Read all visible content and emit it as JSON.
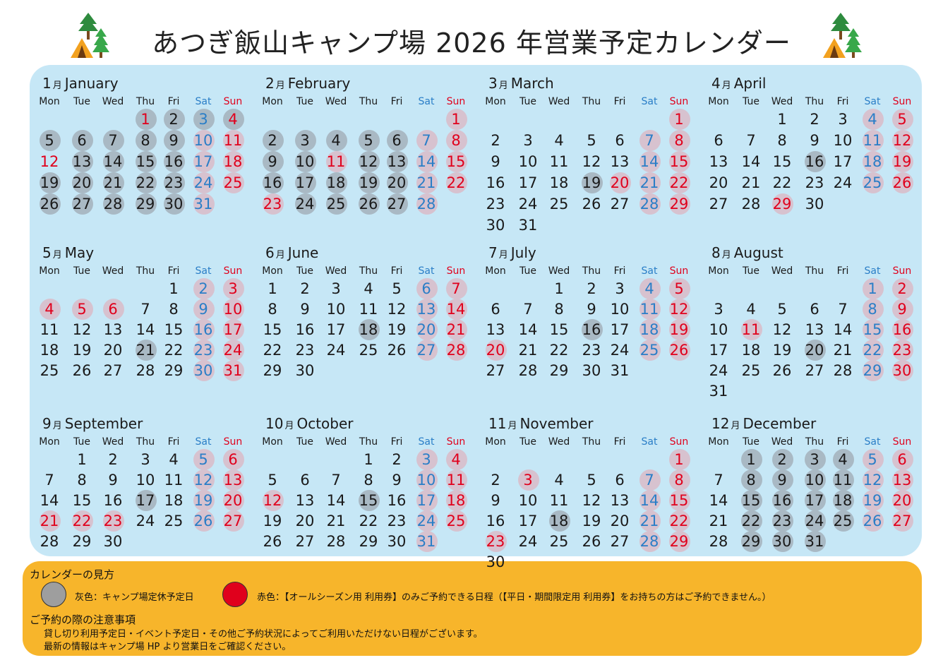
{
  "title": "あつぎ飯山キャンプ場 2026 年営業予定カレンダー",
  "month_suffix": "月",
  "weekdays": [
    "Mon",
    "Tue",
    "Wed",
    "Thu",
    "Fri",
    "Sat",
    "Sun"
  ],
  "colors": {
    "calendar_bg": "#c6e7f6",
    "legend_bg": "#f7b52b",
    "closed": "#a9b9c4",
    "season_only": "#d7c2cf",
    "sat": "#2a7ec7",
    "sun_holiday": "#e0001c"
  },
  "months": [
    {
      "num": "1",
      "name": "January",
      "first": 3,
      "days": 31,
      "holidays": [
        1,
        12
      ],
      "gray": [
        1,
        2,
        3,
        4,
        5,
        6,
        7,
        8,
        9,
        13,
        14,
        15,
        16,
        19,
        20,
        21,
        22,
        23,
        26,
        27,
        28,
        29,
        30
      ],
      "pink": [
        10,
        11,
        17,
        18,
        24,
        25,
        31
      ]
    },
    {
      "num": "2",
      "name": "February",
      "first": 6,
      "days": 28,
      "holidays": [
        11,
        23
      ],
      "gray": [
        2,
        3,
        4,
        5,
        6,
        9,
        10,
        12,
        13,
        16,
        17,
        18,
        19,
        20,
        24,
        25,
        26,
        27
      ],
      "pink": [
        1,
        7,
        8,
        11,
        14,
        15,
        21,
        22,
        23,
        28
      ]
    },
    {
      "num": "3",
      "name": "March",
      "first": 6,
      "days": 31,
      "holidays": [
        20
      ],
      "gray": [
        19
      ],
      "pink": [
        1,
        7,
        8,
        14,
        15,
        20,
        21,
        22,
        28,
        29
      ]
    },
    {
      "num": "4",
      "name": "April",
      "first": 2,
      "days": 30,
      "holidays": [
        29
      ],
      "gray": [
        16
      ],
      "pink": [
        4,
        5,
        11,
        12,
        18,
        19,
        25,
        26,
        29
      ]
    },
    {
      "num": "5",
      "name": "May",
      "first": 4,
      "days": 31,
      "holidays": [
        4,
        5,
        6
      ],
      "gray": [
        21
      ],
      "pink": [
        2,
        3,
        4,
        5,
        6,
        9,
        10,
        16,
        17,
        23,
        24,
        30,
        31
      ]
    },
    {
      "num": "6",
      "name": "June",
      "first": 0,
      "days": 30,
      "holidays": [],
      "gray": [
        18
      ],
      "pink": [
        6,
        7,
        13,
        14,
        20,
        21,
        27,
        28
      ]
    },
    {
      "num": "7",
      "name": "July",
      "first": 2,
      "days": 31,
      "holidays": [
        20
      ],
      "gray": [
        16
      ],
      "pink": [
        4,
        5,
        11,
        12,
        18,
        19,
        20,
        25,
        26
      ]
    },
    {
      "num": "8",
      "name": "August",
      "first": 5,
      "days": 31,
      "holidays": [
        11
      ],
      "gray": [
        20
      ],
      "pink": [
        1,
        2,
        8,
        9,
        11,
        15,
        16,
        22,
        23,
        29,
        30
      ]
    },
    {
      "num": "9",
      "name": "September",
      "first": 1,
      "days": 30,
      "holidays": [
        21,
        22,
        23
      ],
      "gray": [
        17
      ],
      "pink": [
        5,
        6,
        12,
        13,
        19,
        20,
        21,
        22,
        23,
        26,
        27
      ]
    },
    {
      "num": "10",
      "name": "October",
      "first": 3,
      "days": 31,
      "holidays": [
        12
      ],
      "gray": [
        15
      ],
      "pink": [
        3,
        4,
        10,
        11,
        12,
        17,
        18,
        24,
        25,
        31
      ]
    },
    {
      "num": "11",
      "name": "November",
      "first": 6,
      "days": 30,
      "holidays": [
        3,
        23
      ],
      "gray": [
        18
      ],
      "pink": [
        1,
        3,
        7,
        8,
        14,
        15,
        21,
        22,
        23,
        28,
        29
      ]
    },
    {
      "num": "12",
      "name": "December",
      "first": 1,
      "days": 31,
      "holidays": [],
      "gray": [
        1,
        2,
        3,
        4,
        8,
        9,
        10,
        11,
        15,
        16,
        17,
        18,
        22,
        23,
        24,
        25,
        29,
        30,
        31
      ],
      "pink": [
        5,
        6,
        12,
        13,
        19,
        20,
        26,
        27
      ]
    }
  ],
  "legend": {
    "heading": "カレンダーの見方",
    "gray_label": "灰色：キャンプ場定休予定日",
    "red_label": "赤色：【オールシーズン用 利用券】のみご予約できる日程（【平日・期間限定用 利用券】をお持ちの方はご予約できません。）",
    "notes_heading": "ご予約の際の注意事項",
    "note1": "貸し切り利用予定日・イベント予定日・その他ご予約状況によってご利用いただけない日程がございます。",
    "note2": "最新の情報はキャンプ場 HP より営業日をご確認ください。"
  }
}
